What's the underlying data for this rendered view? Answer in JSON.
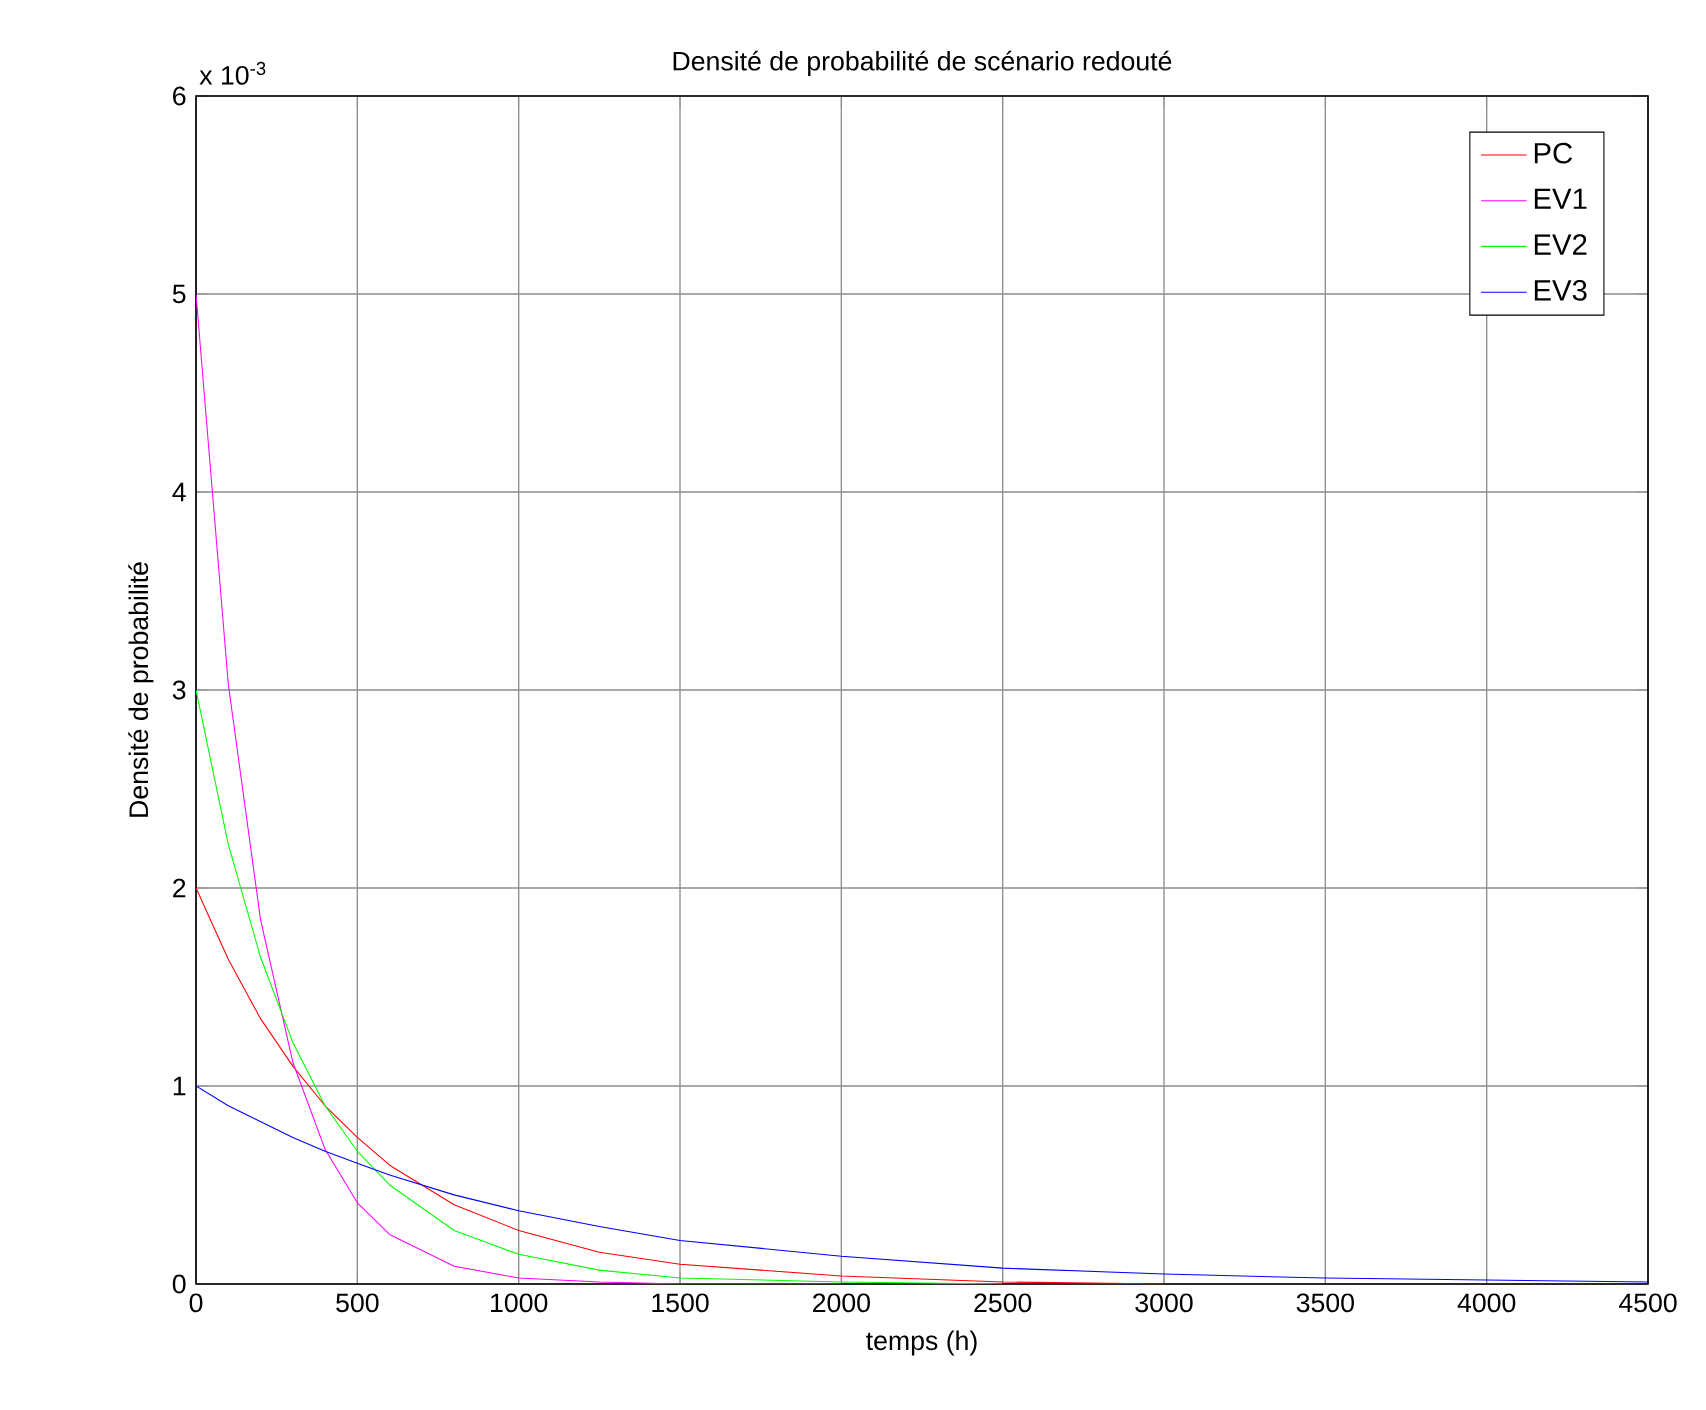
{
  "chart_data": {
    "type": "line",
    "title": "Densité de probabilité de scénario redouté",
    "xlabel": "temps (h)",
    "ylabel": "Densité de probabilité",
    "annotations": [
      "x 10$^{-3}$"
    ],
    "x": [
      0,
      100,
      200,
      300,
      400,
      500,
      600,
      800,
      1000,
      1250,
      1500,
      2000,
      2500,
      3000,
      3500,
      4000,
      4500
    ],
    "series": [
      {
        "name": "PC",
        "color": "#ff0000",
        "values": [
          2.0,
          1.64,
          1.34,
          1.1,
          0.9,
          0.74,
          0.6,
          0.4,
          0.27,
          0.16,
          0.1,
          0.04,
          0.01,
          0,
          null,
          null,
          null
        ]
      },
      {
        "name": "EV1",
        "color": "#ff00ff",
        "values": [
          5.0,
          3.03,
          1.84,
          1.12,
          0.68,
          0.41,
          0.25,
          0.09,
          0.03,
          0.01,
          0,
          0,
          null,
          null,
          null,
          null,
          null
        ]
      },
      {
        "name": "EV2",
        "color": "#00ff00",
        "values": [
          3.0,
          2.22,
          1.65,
          1.22,
          0.9,
          0.67,
          0.5,
          0.27,
          0.15,
          0.07,
          0.03,
          0.01,
          0,
          null,
          null,
          null,
          null
        ]
      },
      {
        "name": "EV3",
        "color": "#0000ff",
        "values": [
          1.0,
          0.9,
          0.82,
          0.74,
          0.67,
          0.61,
          0.55,
          0.45,
          0.37,
          0.29,
          0.22,
          0.14,
          0.08,
          0.05,
          0.03,
          0.02,
          0.01
        ]
      }
    ],
    "xlim": [
      0,
      4500
    ],
    "xticks": [
      0,
      500,
      1000,
      1500,
      2000,
      2500,
      3000,
      3500,
      4000,
      4500
    ],
    "ylim": [
      0,
      6
    ],
    "yticks": [
      0,
      1,
      2,
      3,
      4,
      5,
      6
    ],
    "grid": true,
    "legend": "top right",
    "marker": "none",
    "line_style": "solid"
  }
}
